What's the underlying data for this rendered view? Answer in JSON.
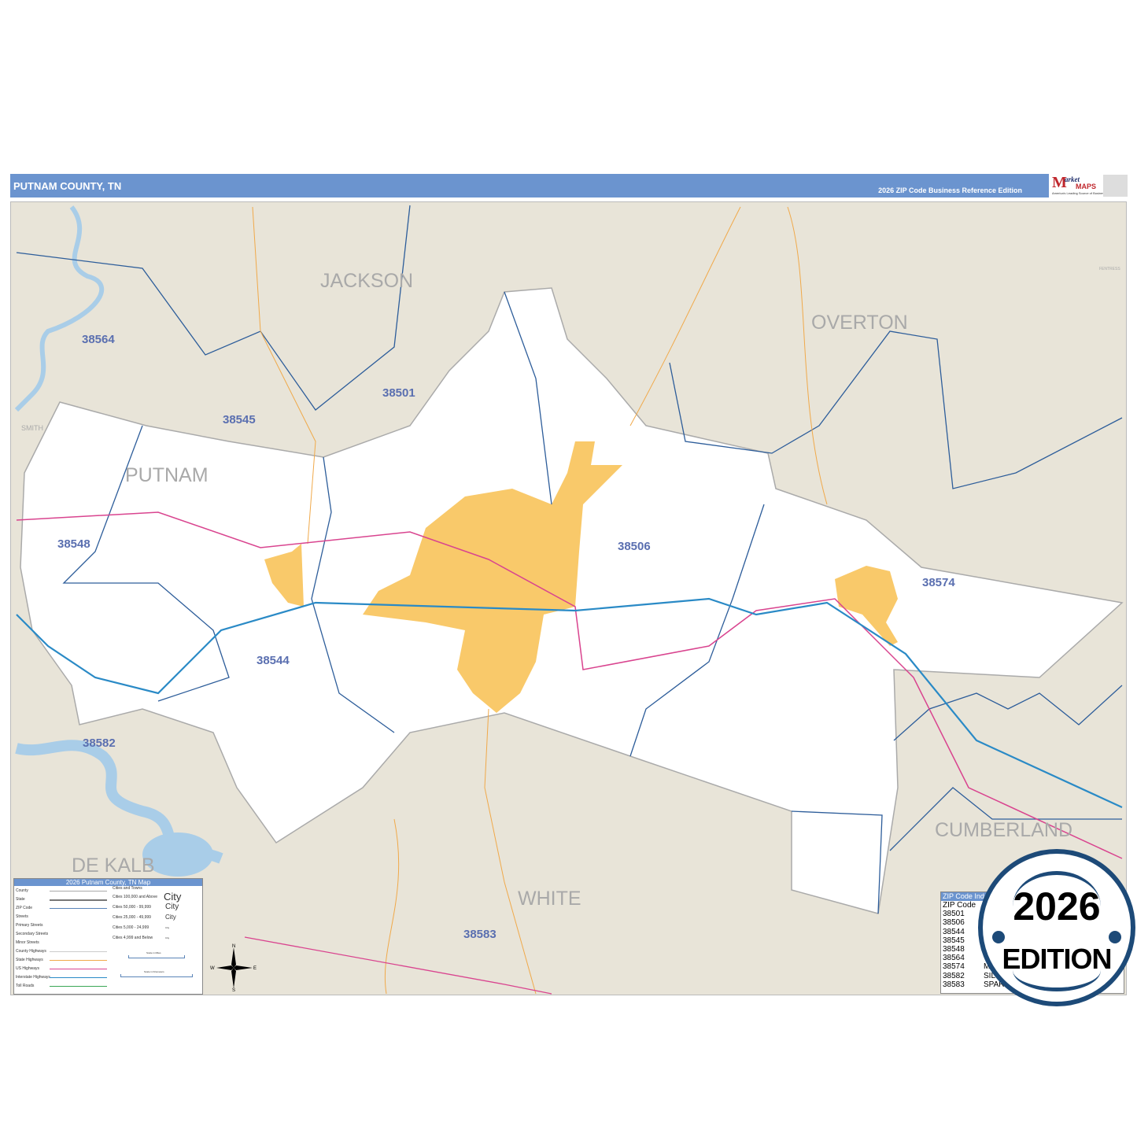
{
  "header": {
    "title": "PUTNAM COUNTY, TN",
    "edition": "2026 ZIP Code Business Reference Edition",
    "logo_text": "Market MAPS",
    "logo_tagline": "America's Leading Source of Business Maps"
  },
  "colors": {
    "header": "#6b94cf",
    "county_fill": "#ffffff",
    "surrounding": "#e8e4d8",
    "city_fill": "#f9c96a",
    "water": "#a9cde8",
    "zip_boundary": "#2d5d9a",
    "interstate": "#2a8ac6",
    "us_highway": "#d9448f",
    "state_highway": "#f0a94a",
    "badge": "#1d4a78"
  },
  "map": {
    "counties": [
      "JACKSON",
      "OVERTON",
      "PUTNAM",
      "DE KALB",
      "WHITE",
      "CUMBERLAND"
    ],
    "minor_counties": [
      "SMITH",
      "FENTRESS"
    ],
    "zip_labels": [
      "38564",
      "38501",
      "38545",
      "38548",
      "38506",
      "38574",
      "38544",
      "38582",
      "38583"
    ]
  },
  "legend": {
    "title": "2026 Putnam County, TN Map",
    "line_items": [
      "County",
      "State",
      "ZIP Code",
      "Streets",
      "Primary Streets",
      "Secondary Streets",
      "Minor Streets",
      "County Highways",
      "State Highways",
      "US Highways",
      "Interstate Highways",
      "Toll Roads"
    ],
    "cities_header": "Cities and Towns",
    "city_items": [
      {
        "label": "Cities 100,000 and Above",
        "sample": "City"
      },
      {
        "label": "Cities 50,000 - 99,999",
        "sample": "City"
      },
      {
        "label": "Cities 25,000 - 49,999",
        "sample": "City"
      },
      {
        "label": "Cities 5,000 - 24,999",
        "sample": "City"
      },
      {
        "label": "Cities 4,999 and Below",
        "sample": "City"
      }
    ],
    "scale_miles": "Scale in Miles",
    "scale_km": "Scale in Kilometers"
  },
  "zip_index": {
    "title": "ZIP Code Inde",
    "header": "ZIP Code",
    "rows": [
      {
        "zip": "38501",
        "city": ""
      },
      {
        "zip": "38506",
        "city": ""
      },
      {
        "zip": "38544",
        "city": ""
      },
      {
        "zip": "38545",
        "city": ""
      },
      {
        "zip": "38548",
        "city": ""
      },
      {
        "zip": "38564",
        "city": ""
      },
      {
        "zip": "38574",
        "city": "M"
      },
      {
        "zip": "38582",
        "city": "SIL"
      },
      {
        "zip": "38583",
        "city": "SPAR"
      }
    ]
  },
  "badge": {
    "year": "2026",
    "text": "EDITION"
  },
  "compass": {
    "n": "N",
    "s": "S",
    "e": "E",
    "w": "W"
  }
}
